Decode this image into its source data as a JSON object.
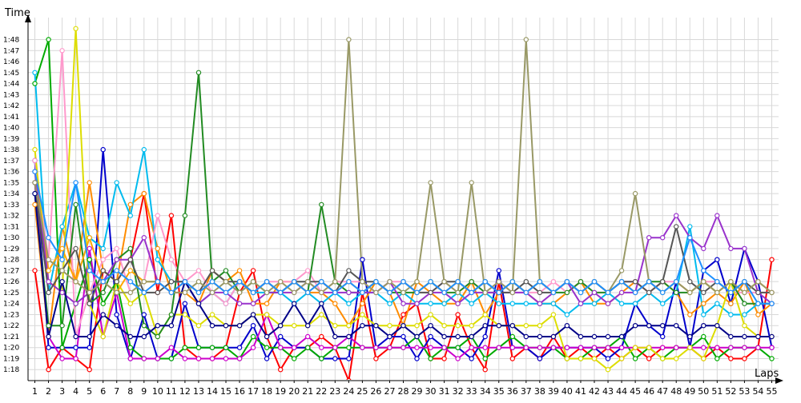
{
  "chart_data": {
    "type": "line",
    "title": "",
    "xlabel": "Laps",
    "ylabel": "Time",
    "x": [
      1,
      2,
      3,
      4,
      5,
      6,
      7,
      8,
      9,
      10,
      11,
      12,
      13,
      14,
      15,
      16,
      17,
      18,
      19,
      20,
      21,
      22,
      23,
      24,
      25,
      26,
      27,
      28,
      29,
      30,
      31,
      32,
      33,
      34,
      35,
      36,
      37,
      38,
      39,
      40,
      41,
      42,
      43,
      44,
      45,
      46,
      47,
      48,
      49,
      50,
      51,
      52,
      53,
      54,
      55
    ],
    "y_tick_labels": [
      "1:18",
      "1:19",
      "1:20",
      "1:21",
      "1:22",
      "1:23",
      "1:24",
      "1:25",
      "1:26",
      "1:27",
      "1:28",
      "1:29",
      "1:30",
      "1:31",
      "1:32",
      "1:33",
      "1:34",
      "1:35",
      "1:36",
      "1:37",
      "1:38",
      "1:39",
      "1:40",
      "1:41",
      "1:42",
      "1:43",
      "1:44",
      "1:45",
      "1:46",
      "1:47",
      "1:48"
    ],
    "y_unit": "seconds",
    "ylim": [
      77,
      110
    ],
    "xlim": [
      0.5,
      55.5
    ],
    "grid": true,
    "legend": "none",
    "series": [
      {
        "color": "#ff0000",
        "values": [
          87,
          78,
          80,
          79,
          78,
          87,
          86,
          88,
          94,
          85,
          92,
          80,
          79,
          79,
          80,
          85,
          87,
          81,
          78,
          80,
          80,
          81,
          80,
          77,
          85,
          79,
          80,
          83,
          84,
          79,
          79,
          83,
          80,
          78,
          86,
          79,
          80,
          79,
          81,
          79,
          80,
          79,
          80,
          79,
          80,
          79,
          80,
          80,
          80,
          79,
          80,
          79,
          79,
          80,
          88
        ]
      },
      {
        "color": "#0000cc",
        "values": [
          97,
          80,
          80,
          80,
          80,
          98,
          83,
          79,
          83,
          79,
          79,
          84,
          80,
          80,
          80,
          80,
          82,
          79,
          81,
          80,
          80,
          79,
          79,
          79,
          88,
          80,
          81,
          81,
          79,
          81,
          80,
          80,
          79,
          81,
          87,
          80,
          80,
          79,
          80,
          80,
          80,
          80,
          79,
          80,
          84,
          82,
          81,
          86,
          80,
          87,
          88,
          84,
          89,
          86,
          80
        ]
      },
      {
        "color": "#00aa00",
        "values": [
          104,
          108,
          80,
          84,
          88,
          84,
          86,
          80,
          79,
          79,
          79,
          80,
          80,
          80,
          80,
          79,
          81,
          80,
          80,
          79,
          80,
          79,
          80,
          80,
          80,
          80,
          80,
          80,
          81,
          79,
          80,
          80,
          81,
          79,
          80,
          81,
          80,
          80,
          80,
          79,
          79,
          80,
          80,
          81,
          79,
          80,
          79,
          80,
          80,
          81,
          79,
          80,
          80,
          80,
          79
        ]
      },
      {
        "color": "#cc00cc",
        "values": [
          95,
          81,
          79,
          79,
          89,
          81,
          85,
          79,
          79,
          79,
          80,
          79,
          79,
          79,
          79,
          79,
          80,
          83,
          80,
          80,
          81,
          80,
          80,
          81,
          80,
          80,
          80,
          80,
          80,
          80,
          80,
          79,
          80,
          80,
          80,
          80,
          80,
          80,
          80,
          80,
          80,
          80,
          80,
          80,
          80,
          80,
          80,
          80,
          80,
          80,
          80,
          80,
          80,
          80,
          80
        ]
      },
      {
        "color": "#ff8c00",
        "values": [
          93,
          81,
          91,
          86,
          95,
          87,
          86,
          93,
          94,
          89,
          85,
          85,
          84,
          87,
          86,
          87,
          84,
          84,
          86,
          86,
          85,
          85,
          84,
          82,
          84,
          86,
          85,
          82,
          86,
          85,
          84,
          84,
          86,
          83,
          85,
          86,
          85,
          84,
          84,
          85,
          86,
          84,
          84,
          85,
          86,
          85,
          86,
          85,
          83,
          84,
          85,
          84,
          86,
          83,
          84
        ]
      },
      {
        "color": "#00bbee",
        "values": [
          105,
          85,
          91,
          95,
          90,
          89,
          95,
          92,
          98,
          88,
          86,
          86,
          84,
          85,
          84,
          86,
          85,
          85,
          85,
          84,
          85,
          84,
          85,
          84,
          85,
          85,
          84,
          85,
          84,
          84,
          84,
          85,
          84,
          85,
          84,
          84,
          84,
          84,
          84,
          83,
          84,
          84,
          85,
          84,
          84,
          85,
          84,
          85,
          91,
          83,
          84,
          83,
          83,
          84,
          84
        ]
      },
      {
        "color": "#ff99cc",
        "values": [
          97,
          88,
          107,
          81,
          85,
          88,
          89,
          85,
          86,
          92,
          88,
          86,
          87,
          85,
          84,
          86,
          85,
          86,
          86,
          86,
          87,
          85,
          86,
          86,
          86,
          85,
          86,
          86,
          85,
          85,
          86,
          85,
          86,
          85,
          86,
          85,
          85,
          85,
          86,
          85,
          86,
          85,
          85,
          86,
          86,
          85,
          86,
          86,
          85,
          86,
          86,
          85,
          85,
          85,
          85
        ]
      },
      {
        "color": "#dddd00",
        "values": [
          98,
          86,
          85,
          109,
          84,
          81,
          86,
          84,
          85,
          81,
          83,
          83,
          82,
          83,
          82,
          82,
          83,
          83,
          82,
          82,
          82,
          83,
          82,
          82,
          83,
          82,
          82,
          82,
          82,
          83,
          82,
          82,
          82,
          83,
          82,
          82,
          82,
          82,
          83,
          79,
          79,
          79,
          78,
          79,
          80,
          80,
          79,
          79,
          80,
          79,
          82,
          86,
          82,
          81,
          81
        ]
      },
      {
        "color": "#228b22",
        "values": [
          94,
          82,
          82,
          93,
          84,
          85,
          88,
          89,
          82,
          81,
          83,
          92,
          105,
          86,
          87,
          85,
          86,
          85,
          85,
          86,
          85,
          93,
          86,
          85,
          85,
          86,
          85,
          85,
          85,
          86,
          85,
          85,
          86,
          85,
          85,
          86,
          85,
          86,
          85,
          85,
          86,
          85,
          85,
          86,
          85,
          86,
          86,
          85,
          85,
          86,
          85,
          86,
          84,
          84,
          84
        ]
      },
      {
        "color": "#ffa500",
        "values": [
          96,
          87,
          89,
          86,
          90,
          86,
          85,
          87,
          86,
          86,
          85,
          86,
          85,
          86,
          85,
          86,
          85,
          86,
          85,
          86,
          85,
          86,
          85,
          86,
          85,
          86,
          85,
          86,
          85,
          86,
          85,
          86,
          85,
          86,
          85,
          86,
          85,
          86,
          85,
          86,
          85,
          86,
          85,
          86,
          85,
          86,
          85,
          86,
          85,
          86,
          85,
          86,
          85,
          86,
          85
        ]
      },
      {
        "color": "#9932cc",
        "values": [
          96,
          86,
          85,
          84,
          85,
          86,
          88,
          88,
          90,
          86,
          85,
          86,
          84,
          85,
          85,
          84,
          84,
          85,
          85,
          85,
          86,
          85,
          85,
          85,
          85,
          85,
          86,
          84,
          84,
          85,
          85,
          84,
          85,
          85,
          85,
          85,
          85,
          84,
          85,
          86,
          84,
          85,
          84,
          85,
          85,
          90,
          90,
          92,
          90,
          89,
          92,
          89,
          89,
          85,
          84
        ]
      },
      {
        "color": "#000088",
        "values": [
          94,
          81,
          86,
          81,
          81,
          83,
          82,
          81,
          81,
          82,
          82,
          86,
          84,
          82,
          82,
          82,
          83,
          81,
          82,
          84,
          82,
          84,
          81,
          81,
          82,
          82,
          81,
          82,
          81,
          82,
          81,
          81,
          81,
          82,
          82,
          82,
          81,
          81,
          81,
          82,
          81,
          81,
          81,
          81,
          82,
          82,
          82,
          82,
          81,
          82,
          82,
          81,
          81,
          81,
          81
        ]
      },
      {
        "color": "#555555",
        "values": [
          95,
          85,
          87,
          89,
          84,
          87,
          86,
          88,
          85,
          85,
          86,
          86,
          85,
          87,
          86,
          86,
          85,
          86,
          85,
          86,
          86,
          86,
          85,
          87,
          86,
          86,
          85,
          86,
          85,
          85,
          86,
          86,
          85,
          86,
          85,
          85,
          86,
          85,
          85,
          86,
          85,
          86,
          85,
          86,
          86,
          85,
          86,
          91,
          86,
          85,
          86,
          85,
          86,
          85,
          85
        ]
      },
      {
        "color": "#999966",
        "values": [
          95,
          88,
          87,
          86,
          85,
          86,
          85,
          85,
          86,
          86,
          85,
          85,
          86,
          85,
          86,
          85,
          86,
          85,
          86,
          85,
          86,
          85,
          86,
          108,
          86,
          85,
          86,
          85,
          86,
          95,
          86,
          85,
          95,
          85,
          86,
          85,
          108,
          86,
          85,
          86,
          85,
          86,
          85,
          87,
          94,
          86,
          85,
          86,
          85,
          86,
          85,
          86,
          85,
          86,
          85
        ]
      },
      {
        "color": "#1e90ff",
        "values": [
          96,
          90,
          88,
          95,
          87,
          86,
          87,
          86,
          85,
          86,
          85,
          86,
          85,
          86,
          85,
          86,
          85,
          86,
          85,
          86,
          85,
          86,
          85,
          86,
          85,
          86,
          85,
          86,
          85,
          86,
          85,
          86,
          85,
          86,
          85,
          86,
          85,
          86,
          85,
          86,
          85,
          86,
          85,
          86,
          85,
          86,
          85,
          86,
          90,
          87,
          86,
          85,
          86,
          84,
          84
        ]
      }
    ]
  }
}
